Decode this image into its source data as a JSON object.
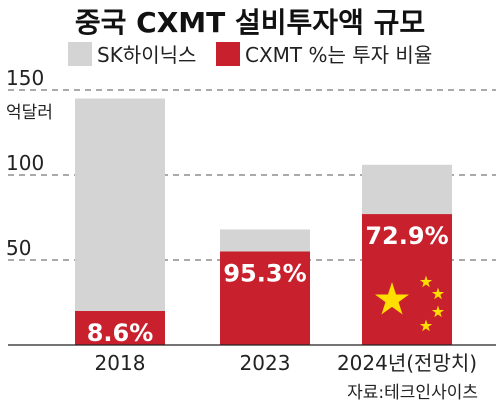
{
  "title": "중국 CXMT 설비투자액 규모",
  "legend": [
    {
      "label": "SK하이닉스",
      "color": "#d4d4d4"
    },
    {
      "label": "CXMT  %는 투자 비율",
      "color": "#c8202d"
    }
  ],
  "unit": "억달러",
  "source": "자료:테크인사이츠",
  "flag_colors": {
    "star": "#ffde00"
  },
  "chart_data": {
    "type": "bar",
    "categories": [
      "2018",
      "2023",
      "2024년(전망치)"
    ],
    "series": [
      {
        "name": "SK하이닉스",
        "values": [
          145,
          68,
          106
        ]
      },
      {
        "name": "CXMT",
        "values": [
          20,
          55,
          77
        ]
      }
    ],
    "data_labels": [
      "8.6%",
      "95.3%",
      "72.9%"
    ],
    "yticks": [
      50,
      100,
      150
    ],
    "ylim": [
      0,
      150
    ],
    "grid": true,
    "legend_position": "top"
  }
}
